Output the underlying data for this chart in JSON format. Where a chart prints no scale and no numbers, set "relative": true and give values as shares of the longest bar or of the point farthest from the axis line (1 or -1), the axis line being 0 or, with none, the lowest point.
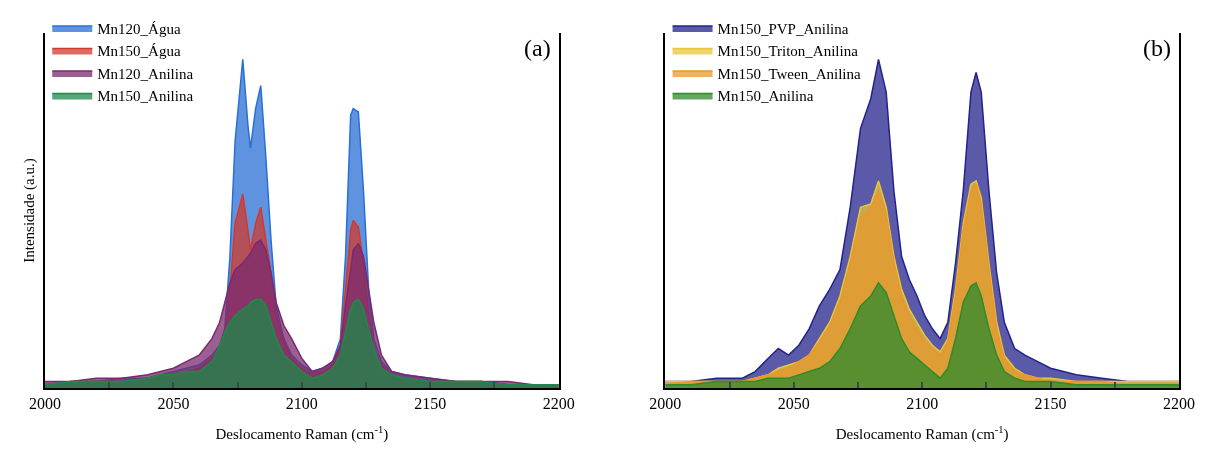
{
  "chart_data": [
    {
      "type": "area",
      "relative": true,
      "ylabel": "Intensidade (a.u.)",
      "xlabel": "Deslocamento Raman (cm$^{-1}$)",
      "annotations": [
        "(a)"
      ],
      "legend": "top left",
      "tick_labels": "x",
      "xlim": [
        2000,
        2200
      ],
      "xticks": [
        2000,
        {
          "value": 2025,
          "label": null
        },
        2050,
        {
          "value": 2075,
          "label": null
        },
        2100,
        {
          "value": 2125,
          "label": null
        },
        2150,
        {
          "value": 2175,
          "label": null
        },
        2200
      ],
      "x": [
        2000,
        2010,
        2020,
        2030,
        2040,
        2045,
        2050,
        2055,
        2060,
        2065,
        2068,
        2070,
        2072,
        2074,
        2077,
        2079,
        2080,
        2082,
        2084,
        2086,
        2088,
        2090,
        2093,
        2096,
        2100,
        2104,
        2108,
        2112,
        2115,
        2117,
        2119,
        2120,
        2122,
        2124,
        2126,
        2128,
        2131,
        2135,
        2140,
        2150,
        2160,
        2170,
        2180,
        2190,
        2200
      ],
      "series": [
        {
          "name": "Mn120_Água",
          "color": "#2a6fd6",
          "values": [
            0.01,
            0.02,
            0.02,
            0.03,
            0.03,
            0.04,
            0.05,
            0.06,
            0.07,
            0.1,
            0.13,
            0.18,
            0.4,
            0.75,
            1.0,
            0.8,
            0.73,
            0.85,
            0.92,
            0.7,
            0.45,
            0.25,
            0.15,
            0.1,
            0.07,
            0.05,
            0.06,
            0.08,
            0.15,
            0.4,
            0.83,
            0.85,
            0.84,
            0.6,
            0.3,
            0.15,
            0.08,
            0.05,
            0.04,
            0.03,
            0.02,
            0.02,
            0.01,
            0.01,
            0.01
          ]
        },
        {
          "name": "Mn150_Água",
          "color": "#d03a2e",
          "values": [
            0.01,
            0.02,
            0.02,
            0.02,
            0.03,
            0.04,
            0.04,
            0.05,
            0.06,
            0.09,
            0.12,
            0.16,
            0.3,
            0.5,
            0.59,
            0.48,
            0.42,
            0.5,
            0.55,
            0.45,
            0.35,
            0.22,
            0.14,
            0.09,
            0.06,
            0.04,
            0.05,
            0.07,
            0.13,
            0.3,
            0.48,
            0.51,
            0.49,
            0.38,
            0.22,
            0.12,
            0.07,
            0.04,
            0.03,
            0.02,
            0.02,
            0.02,
            0.01,
            0.01,
            0.01
          ]
        },
        {
          "name": "Mn120_Anilina",
          "color": "#7b2a6e",
          "values": [
            0.02,
            0.02,
            0.03,
            0.03,
            0.04,
            0.05,
            0.06,
            0.08,
            0.1,
            0.15,
            0.2,
            0.26,
            0.32,
            0.36,
            0.38,
            0.4,
            0.41,
            0.44,
            0.45,
            0.42,
            0.35,
            0.26,
            0.19,
            0.15,
            0.09,
            0.05,
            0.06,
            0.08,
            0.13,
            0.25,
            0.36,
            0.42,
            0.44,
            0.4,
            0.3,
            0.2,
            0.1,
            0.05,
            0.04,
            0.03,
            0.02,
            0.02,
            0.02,
            0.01,
            0.01
          ]
        },
        {
          "name": "Mn150_Anilina",
          "color": "#1e8a4a",
          "values": [
            0.01,
            0.02,
            0.02,
            0.02,
            0.03,
            0.04,
            0.04,
            0.05,
            0.05,
            0.08,
            0.13,
            0.17,
            0.2,
            0.22,
            0.24,
            0.25,
            0.26,
            0.27,
            0.27,
            0.25,
            0.2,
            0.15,
            0.1,
            0.08,
            0.05,
            0.03,
            0.04,
            0.06,
            0.1,
            0.17,
            0.24,
            0.26,
            0.27,
            0.24,
            0.18,
            0.12,
            0.06,
            0.04,
            0.03,
            0.02,
            0.02,
            0.02,
            0.01,
            0.01,
            0.01
          ]
        }
      ]
    },
    {
      "type": "area",
      "relative": true,
      "xlabel": "Deslocamento Raman (cm$^{-1}$)",
      "annotations": [
        "(b)"
      ],
      "legend": "top left",
      "tick_labels": "x",
      "xlim": [
        2000,
        2200
      ],
      "xticks": [
        2000,
        {
          "value": 2025,
          "label": null
        },
        2050,
        {
          "value": 2075,
          "label": null
        },
        2100,
        {
          "value": 2125,
          "label": null
        },
        2150,
        {
          "value": 2175,
          "label": null
        },
        2200
      ],
      "x": [
        2000,
        2010,
        2020,
        2030,
        2035,
        2040,
        2044,
        2048,
        2052,
        2056,
        2060,
        2064,
        2068,
        2072,
        2076,
        2080,
        2083,
        2086,
        2089,
        2092,
        2095,
        2098,
        2101,
        2104,
        2107,
        2110,
        2113,
        2116,
        2119,
        2121,
        2123,
        2126,
        2129,
        2132,
        2136,
        2140,
        2145,
        2150,
        2160,
        2170,
        2180,
        2190,
        2200
      ],
      "series": [
        {
          "name": "Mn150_PVP_Anilina",
          "color": "#23238c",
          "values": [
            0.02,
            0.02,
            0.03,
            0.03,
            0.05,
            0.09,
            0.12,
            0.1,
            0.13,
            0.18,
            0.25,
            0.3,
            0.36,
            0.55,
            0.79,
            0.88,
            1.0,
            0.9,
            0.6,
            0.4,
            0.33,
            0.28,
            0.22,
            0.18,
            0.15,
            0.2,
            0.38,
            0.6,
            0.9,
            0.96,
            0.9,
            0.6,
            0.35,
            0.2,
            0.12,
            0.1,
            0.08,
            0.06,
            0.04,
            0.03,
            0.02,
            0.02,
            0.02
          ]
        },
        {
          "name": "Mn150_Triton_Anilina",
          "color": "#e8c53a",
          "values": [
            0.02,
            0.02,
            0.02,
            0.02,
            0.03,
            0.04,
            0.06,
            0.07,
            0.08,
            0.1,
            0.15,
            0.2,
            0.28,
            0.4,
            0.55,
            0.56,
            0.63,
            0.55,
            0.4,
            0.3,
            0.24,
            0.2,
            0.16,
            0.13,
            0.11,
            0.15,
            0.3,
            0.5,
            0.62,
            0.63,
            0.58,
            0.38,
            0.2,
            0.1,
            0.06,
            0.04,
            0.03,
            0.03,
            0.02,
            0.02,
            0.02,
            0.02,
            0.02
          ]
        },
        {
          "name": "Mn150_Tween_Anilina",
          "color": "#e8982c",
          "values": [
            0.01,
            0.02,
            0.02,
            0.02,
            0.03,
            0.04,
            0.05,
            0.06,
            0.08,
            0.1,
            0.14,
            0.19,
            0.26,
            0.38,
            0.52,
            0.55,
            0.6,
            0.53,
            0.38,
            0.28,
            0.22,
            0.18,
            0.14,
            0.12,
            0.1,
            0.14,
            0.28,
            0.48,
            0.6,
            0.62,
            0.56,
            0.36,
            0.18,
            0.09,
            0.05,
            0.04,
            0.03,
            0.02,
            0.02,
            0.02,
            0.01,
            0.01,
            0.01
          ]
        },
        {
          "name": "Mn150_Anilina",
          "color": "#2e8b2e",
          "values": [
            0.01,
            0.01,
            0.02,
            0.02,
            0.02,
            0.03,
            0.03,
            0.03,
            0.04,
            0.05,
            0.06,
            0.08,
            0.12,
            0.18,
            0.25,
            0.28,
            0.32,
            0.29,
            0.22,
            0.15,
            0.11,
            0.09,
            0.07,
            0.05,
            0.03,
            0.06,
            0.15,
            0.26,
            0.31,
            0.32,
            0.28,
            0.18,
            0.1,
            0.05,
            0.03,
            0.02,
            0.02,
            0.02,
            0.01,
            0.01,
            0.01,
            0.01,
            0.01
          ]
        }
      ]
    }
  ]
}
